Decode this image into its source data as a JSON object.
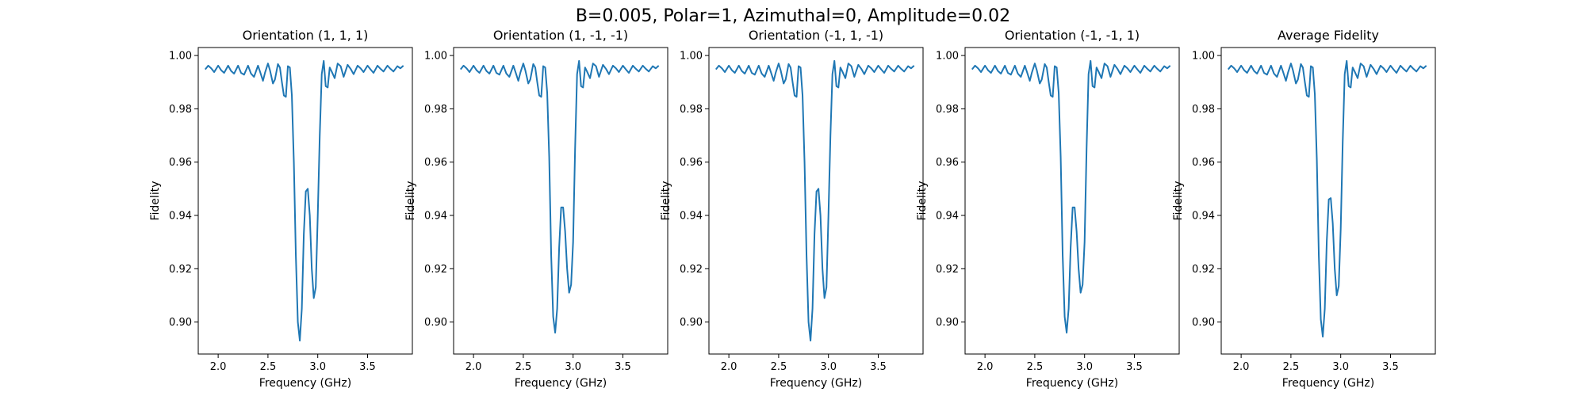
{
  "figure": {
    "suptitle": "B=0.005, Polar=1, Azimuthal=0, Amplitude=0.02",
    "line_color": "#1f77b4"
  },
  "chart_data": [
    {
      "type": "line",
      "title": "Orientation (1, 1, 1)",
      "xlabel": "Frequency (GHz)",
      "ylabel": "Fidelity",
      "xlim": [
        1.8,
        3.95
      ],
      "ylim": [
        0.888,
        1.003
      ],
      "xticks": [
        2.0,
        2.5,
        3.0,
        3.5
      ],
      "xtick_labels": [
        "2.0",
        "2.5",
        "3.0",
        "3.5"
      ],
      "yticks": [
        0.9,
        0.92,
        0.94,
        0.96,
        0.98,
        1.0
      ],
      "ytick_labels": [
        "0.90",
        "0.92",
        "0.94",
        "0.96",
        "0.98",
        "1.00"
      ],
      "grid": false,
      "series": [
        {
          "x": [
            1.87,
            1.9,
            1.93,
            1.96,
            2.0,
            2.03,
            2.06,
            2.1,
            2.13,
            2.16,
            2.2,
            2.23,
            2.26,
            2.3,
            2.33,
            2.36,
            2.4,
            2.42,
            2.45,
            2.47,
            2.5,
            2.52,
            2.55,
            2.57,
            2.6,
            2.62,
            2.64,
            2.66,
            2.68,
            2.7,
            2.72,
            2.74,
            2.76,
            2.78,
            2.8,
            2.82,
            2.84,
            2.86,
            2.88,
            2.9,
            2.92,
            2.94,
            2.96,
            2.98,
            3.0,
            3.02,
            3.04,
            3.06,
            3.08,
            3.1,
            3.12,
            3.14,
            3.17,
            3.2,
            3.23,
            3.26,
            3.3,
            3.33,
            3.36,
            3.4,
            3.43,
            3.46,
            3.5,
            3.53,
            3.56,
            3.6,
            3.63,
            3.66,
            3.7,
            3.73,
            3.76,
            3.8,
            3.83,
            3.86
          ],
          "y": [
            0.9948,
            0.9962,
            0.9952,
            0.9938,
            0.9962,
            0.9945,
            0.9935,
            0.9962,
            0.9942,
            0.9932,
            0.9962,
            0.9935,
            0.9928,
            0.9962,
            0.9932,
            0.992,
            0.9962,
            0.994,
            0.9905,
            0.9935,
            0.997,
            0.9945,
            0.9895,
            0.991,
            0.9968,
            0.9955,
            0.99,
            0.985,
            0.9845,
            0.996,
            0.9955,
            0.985,
            0.96,
            0.925,
            0.9,
            0.893,
            0.905,
            0.933,
            0.949,
            0.95,
            0.94,
            0.92,
            0.909,
            0.913,
            0.94,
            0.97,
            0.993,
            0.998,
            0.9885,
            0.988,
            0.9955,
            0.994,
            0.9915,
            0.997,
            0.996,
            0.992,
            0.9965,
            0.995,
            0.993,
            0.9962,
            0.9952,
            0.9938,
            0.9962,
            0.9948,
            0.9935,
            0.9962,
            0.995,
            0.994,
            0.9962,
            0.995,
            0.994,
            0.996,
            0.9952,
            0.9962
          ]
        }
      ]
    },
    {
      "type": "line",
      "title": "Orientation (1, -1, -1)",
      "xlabel": "Frequency (GHz)",
      "ylabel": "Fidelity",
      "xlim": [
        1.8,
        3.95
      ],
      "ylim": [
        0.888,
        1.003
      ],
      "xticks": [
        2.0,
        2.5,
        3.0,
        3.5
      ],
      "xtick_labels": [
        "2.0",
        "2.5",
        "3.0",
        "3.5"
      ],
      "yticks": [
        0.9,
        0.92,
        0.94,
        0.96,
        0.98,
        1.0
      ],
      "ytick_labels": [
        "0.90",
        "0.92",
        "0.94",
        "0.96",
        "0.98",
        "1.00"
      ],
      "grid": false,
      "series": [
        {
          "x": [
            1.87,
            1.9,
            1.93,
            1.96,
            2.0,
            2.03,
            2.06,
            2.1,
            2.13,
            2.16,
            2.2,
            2.23,
            2.26,
            2.3,
            2.33,
            2.36,
            2.4,
            2.42,
            2.45,
            2.47,
            2.5,
            2.52,
            2.55,
            2.57,
            2.6,
            2.62,
            2.64,
            2.66,
            2.68,
            2.7,
            2.72,
            2.74,
            2.76,
            2.78,
            2.8,
            2.82,
            2.84,
            2.86,
            2.88,
            2.9,
            2.92,
            2.94,
            2.96,
            2.98,
            3.0,
            3.02,
            3.04,
            3.06,
            3.08,
            3.1,
            3.12,
            3.14,
            3.17,
            3.2,
            3.23,
            3.26,
            3.3,
            3.33,
            3.36,
            3.4,
            3.43,
            3.46,
            3.5,
            3.53,
            3.56,
            3.6,
            3.63,
            3.66,
            3.7,
            3.73,
            3.76,
            3.8,
            3.83,
            3.86
          ],
          "y": [
            0.9948,
            0.9962,
            0.9952,
            0.9938,
            0.9962,
            0.9945,
            0.9935,
            0.9962,
            0.9942,
            0.9932,
            0.9962,
            0.9935,
            0.9928,
            0.9962,
            0.9932,
            0.992,
            0.9962,
            0.994,
            0.9905,
            0.9935,
            0.997,
            0.9945,
            0.9895,
            0.991,
            0.9968,
            0.9955,
            0.99,
            0.985,
            0.9845,
            0.996,
            0.9955,
            0.986,
            0.962,
            0.925,
            0.902,
            0.896,
            0.905,
            0.928,
            0.943,
            0.943,
            0.934,
            0.92,
            0.911,
            0.914,
            0.93,
            0.965,
            0.993,
            0.998,
            0.9885,
            0.988,
            0.9955,
            0.994,
            0.9915,
            0.997,
            0.996,
            0.992,
            0.9965,
            0.995,
            0.993,
            0.9962,
            0.9952,
            0.9938,
            0.9962,
            0.9948,
            0.9935,
            0.9962,
            0.995,
            0.994,
            0.9962,
            0.995,
            0.994,
            0.996,
            0.9952,
            0.9962
          ]
        }
      ]
    },
    {
      "type": "line",
      "title": "Orientation (-1, 1, -1)",
      "xlabel": "Frequency (GHz)",
      "ylabel": "Fidelity",
      "xlim": [
        1.8,
        3.95
      ],
      "ylim": [
        0.888,
        1.003
      ],
      "xticks": [
        2.0,
        2.5,
        3.0,
        3.5
      ],
      "xtick_labels": [
        "2.0",
        "2.5",
        "3.0",
        "3.5"
      ],
      "yticks": [
        0.9,
        0.92,
        0.94,
        0.96,
        0.98,
        1.0
      ],
      "ytick_labels": [
        "0.90",
        "0.92",
        "0.94",
        "0.96",
        "0.98",
        "1.00"
      ],
      "grid": false,
      "series": [
        {
          "x": [
            1.87,
            1.9,
            1.93,
            1.96,
            2.0,
            2.03,
            2.06,
            2.1,
            2.13,
            2.16,
            2.2,
            2.23,
            2.26,
            2.3,
            2.33,
            2.36,
            2.4,
            2.42,
            2.45,
            2.47,
            2.5,
            2.52,
            2.55,
            2.57,
            2.6,
            2.62,
            2.64,
            2.66,
            2.68,
            2.7,
            2.72,
            2.74,
            2.76,
            2.78,
            2.8,
            2.82,
            2.84,
            2.86,
            2.88,
            2.9,
            2.92,
            2.94,
            2.96,
            2.98,
            3.0,
            3.02,
            3.04,
            3.06,
            3.08,
            3.1,
            3.12,
            3.14,
            3.17,
            3.2,
            3.23,
            3.26,
            3.3,
            3.33,
            3.36,
            3.4,
            3.43,
            3.46,
            3.5,
            3.53,
            3.56,
            3.6,
            3.63,
            3.66,
            3.7,
            3.73,
            3.76,
            3.8,
            3.83,
            3.86
          ],
          "y": [
            0.9948,
            0.9962,
            0.9952,
            0.9938,
            0.9962,
            0.9945,
            0.9935,
            0.9962,
            0.9942,
            0.9932,
            0.9962,
            0.9935,
            0.9928,
            0.9962,
            0.9932,
            0.992,
            0.9962,
            0.994,
            0.9905,
            0.9935,
            0.997,
            0.9945,
            0.9895,
            0.991,
            0.9968,
            0.9955,
            0.99,
            0.985,
            0.9845,
            0.996,
            0.9955,
            0.985,
            0.96,
            0.925,
            0.9,
            0.893,
            0.905,
            0.933,
            0.949,
            0.95,
            0.94,
            0.92,
            0.909,
            0.913,
            0.94,
            0.97,
            0.993,
            0.998,
            0.9885,
            0.988,
            0.9955,
            0.994,
            0.9915,
            0.997,
            0.996,
            0.992,
            0.9965,
            0.995,
            0.993,
            0.9962,
            0.9952,
            0.9938,
            0.9962,
            0.9948,
            0.9935,
            0.9962,
            0.995,
            0.994,
            0.9962,
            0.995,
            0.994,
            0.996,
            0.9952,
            0.9962
          ]
        }
      ]
    },
    {
      "type": "line",
      "title": "Orientation (-1, -1, 1)",
      "xlabel": "Frequency (GHz)",
      "ylabel": "Fidelity",
      "xlim": [
        1.8,
        3.95
      ],
      "ylim": [
        0.888,
        1.003
      ],
      "xticks": [
        2.0,
        2.5,
        3.0,
        3.5
      ],
      "xtick_labels": [
        "2.0",
        "2.5",
        "3.0",
        "3.5"
      ],
      "yticks": [
        0.9,
        0.92,
        0.94,
        0.96,
        0.98,
        1.0
      ],
      "ytick_labels": [
        "0.90",
        "0.92",
        "0.94",
        "0.96",
        "0.98",
        "1.00"
      ],
      "grid": false,
      "series": [
        {
          "x": [
            1.87,
            1.9,
            1.93,
            1.96,
            2.0,
            2.03,
            2.06,
            2.1,
            2.13,
            2.16,
            2.2,
            2.23,
            2.26,
            2.3,
            2.33,
            2.36,
            2.4,
            2.42,
            2.45,
            2.47,
            2.5,
            2.52,
            2.55,
            2.57,
            2.6,
            2.62,
            2.64,
            2.66,
            2.68,
            2.7,
            2.72,
            2.74,
            2.76,
            2.78,
            2.8,
            2.82,
            2.84,
            2.86,
            2.88,
            2.9,
            2.92,
            2.94,
            2.96,
            2.98,
            3.0,
            3.02,
            3.04,
            3.06,
            3.08,
            3.1,
            3.12,
            3.14,
            3.17,
            3.2,
            3.23,
            3.26,
            3.3,
            3.33,
            3.36,
            3.4,
            3.43,
            3.46,
            3.5,
            3.53,
            3.56,
            3.6,
            3.63,
            3.66,
            3.7,
            3.73,
            3.76,
            3.8,
            3.83,
            3.86
          ],
          "y": [
            0.9948,
            0.9962,
            0.9952,
            0.9938,
            0.9962,
            0.9945,
            0.9935,
            0.9962,
            0.9942,
            0.9932,
            0.9962,
            0.9935,
            0.9928,
            0.9962,
            0.9932,
            0.992,
            0.9962,
            0.994,
            0.9905,
            0.9935,
            0.997,
            0.9945,
            0.9895,
            0.991,
            0.9968,
            0.9955,
            0.99,
            0.985,
            0.9845,
            0.996,
            0.9955,
            0.986,
            0.962,
            0.925,
            0.902,
            0.896,
            0.905,
            0.928,
            0.943,
            0.943,
            0.934,
            0.92,
            0.911,
            0.914,
            0.93,
            0.965,
            0.993,
            0.998,
            0.9885,
            0.988,
            0.9955,
            0.994,
            0.9915,
            0.997,
            0.996,
            0.992,
            0.9965,
            0.995,
            0.993,
            0.9962,
            0.9952,
            0.9938,
            0.9962,
            0.9948,
            0.9935,
            0.9962,
            0.995,
            0.994,
            0.9962,
            0.995,
            0.994,
            0.996,
            0.9952,
            0.9962
          ]
        }
      ]
    },
    {
      "type": "line",
      "title": "Average Fidelity",
      "xlabel": "Frequency (GHz)",
      "ylabel": "Fidelity",
      "xlim": [
        1.8,
        3.95
      ],
      "ylim": [
        0.888,
        1.003
      ],
      "xticks": [
        2.0,
        2.5,
        3.0,
        3.5
      ],
      "xtick_labels": [
        "2.0",
        "2.5",
        "3.0",
        "3.5"
      ],
      "yticks": [
        0.9,
        0.92,
        0.94,
        0.96,
        0.98,
        1.0
      ],
      "ytick_labels": [
        "0.90",
        "0.92",
        "0.94",
        "0.96",
        "0.98",
        "1.00"
      ],
      "grid": false,
      "series": [
        {
          "x": [
            1.87,
            1.9,
            1.93,
            1.96,
            2.0,
            2.03,
            2.06,
            2.1,
            2.13,
            2.16,
            2.2,
            2.23,
            2.26,
            2.3,
            2.33,
            2.36,
            2.4,
            2.42,
            2.45,
            2.47,
            2.5,
            2.52,
            2.55,
            2.57,
            2.6,
            2.62,
            2.64,
            2.66,
            2.68,
            2.7,
            2.72,
            2.74,
            2.76,
            2.78,
            2.8,
            2.82,
            2.84,
            2.86,
            2.88,
            2.9,
            2.92,
            2.94,
            2.96,
            2.98,
            3.0,
            3.02,
            3.04,
            3.06,
            3.08,
            3.1,
            3.12,
            3.14,
            3.17,
            3.2,
            3.23,
            3.26,
            3.3,
            3.33,
            3.36,
            3.4,
            3.43,
            3.46,
            3.5,
            3.53,
            3.56,
            3.6,
            3.63,
            3.66,
            3.7,
            3.73,
            3.76,
            3.8,
            3.83,
            3.86
          ],
          "y": [
            0.9948,
            0.9962,
            0.9952,
            0.9938,
            0.9962,
            0.9945,
            0.9935,
            0.9962,
            0.9942,
            0.9932,
            0.9962,
            0.9935,
            0.9928,
            0.9962,
            0.9932,
            0.992,
            0.9962,
            0.994,
            0.9905,
            0.9935,
            0.997,
            0.9945,
            0.9895,
            0.991,
            0.9968,
            0.9955,
            0.99,
            0.985,
            0.9845,
            0.996,
            0.9955,
            0.9855,
            0.961,
            0.925,
            0.901,
            0.8945,
            0.905,
            0.9305,
            0.946,
            0.9465,
            0.937,
            0.92,
            0.91,
            0.9135,
            0.935,
            0.9675,
            0.993,
            0.998,
            0.9885,
            0.988,
            0.9955,
            0.994,
            0.9915,
            0.997,
            0.996,
            0.992,
            0.9965,
            0.995,
            0.993,
            0.9962,
            0.9952,
            0.9938,
            0.9962,
            0.9948,
            0.9935,
            0.9962,
            0.995,
            0.994,
            0.9962,
            0.995,
            0.994,
            0.996,
            0.9952,
            0.9962
          ]
        }
      ]
    }
  ]
}
